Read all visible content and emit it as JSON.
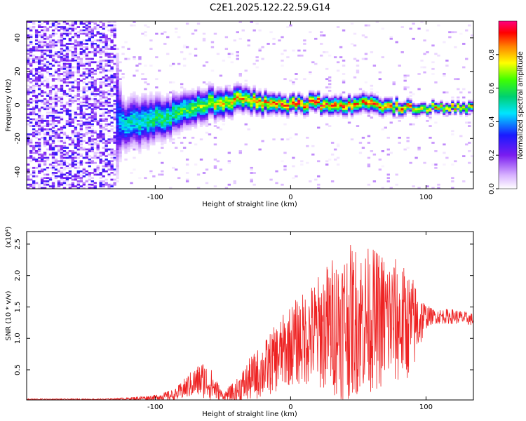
{
  "title": "C2E1.2025.122.22.59.G14",
  "colorbar": {
    "label": "Normalized spectral amplitude",
    "ticks": [
      "0.0",
      "0.2",
      "0.4",
      "0.6",
      "0.8"
    ],
    "tick_values": [
      0.0,
      0.2,
      0.4,
      0.6,
      0.8
    ],
    "range": [
      0,
      1
    ]
  },
  "chart_data": [
    {
      "type": "heatmap",
      "name": "spectrogram",
      "title": "C2E1.2025.122.22.59.G14",
      "xlabel": "Height of straight line (km)",
      "ylabel": "Frequency (Hz)",
      "xlim": [
        -195,
        135
      ],
      "ylim": [
        -50,
        50
      ],
      "x_ticks": [
        "-100",
        "0",
        "100"
      ],
      "x_tick_values": [
        -100,
        0,
        100
      ],
      "y_ticks": [
        "40",
        "20",
        "0",
        "-20",
        "-40"
      ],
      "y_tick_values": [
        40,
        20,
        0,
        -20,
        -40
      ],
      "description_points": {
        "x": [
          -195,
          -130,
          -125,
          -110,
          -95,
          -80,
          -65,
          -50,
          -35,
          -20,
          0,
          20,
          40,
          60,
          80,
          100,
          120,
          135
        ],
        "center_freq": [
          0,
          0,
          -12,
          -10,
          -8,
          -4,
          0,
          2,
          3,
          1,
          0,
          1,
          0,
          0,
          -1,
          -2,
          -2,
          -2
        ],
        "width": [
          50,
          50,
          14,
          14,
          12,
          10,
          9,
          8,
          7,
          6,
          5,
          5,
          5,
          5,
          4,
          3,
          3,
          3
        ],
        "peak_amplitude": [
          0.25,
          0.25,
          0.5,
          0.55,
          0.6,
          0.65,
          0.7,
          0.8,
          0.85,
          0.9,
          0.95,
          0.95,
          0.9,
          0.9,
          0.9,
          0.85,
          0.85,
          0.85
        ]
      }
    },
    {
      "type": "line",
      "name": "snr",
      "xlabel": "Height of straight line (km)",
      "ylabel": "SNR (10 * v/v)",
      "y_scale_label": "(x10⁴)",
      "color": "#ee2222",
      "xlim": [
        -195,
        135
      ],
      "ylim": [
        0.02,
        2.7
      ],
      "x_ticks": [
        "-100",
        "0",
        "100"
      ],
      "x_tick_values": [
        -100,
        0,
        100
      ],
      "y_ticks": [
        "0.5",
        "1.0",
        "1.5",
        "2.0",
        "2.5"
      ],
      "y_tick_values": [
        0.5,
        1.0,
        1.5,
        2.0,
        2.5
      ],
      "envelope": {
        "x": [
          -195,
          -140,
          -120,
          -100,
          -85,
          -75,
          -65,
          -58,
          -50,
          -40,
          -30,
          -20,
          -10,
          0,
          10,
          20,
          30,
          40,
          50,
          60,
          70,
          80,
          90,
          100,
          105,
          120,
          135
        ],
        "base": [
          0.03,
          0.03,
          0.04,
          0.06,
          0.1,
          0.25,
          0.35,
          0.25,
          0.08,
          0.15,
          0.35,
          0.5,
          0.7,
          0.9,
          1.0,
          1.1,
          1.2,
          1.25,
          1.3,
          1.3,
          1.3,
          1.25,
          1.2,
          1.35,
          1.35,
          1.35,
          1.3
        ],
        "amp": [
          0.01,
          0.01,
          0.02,
          0.04,
          0.1,
          0.2,
          0.3,
          0.25,
          0.05,
          0.2,
          0.35,
          0.45,
          0.55,
          0.65,
          0.75,
          0.9,
          1.1,
          1.25,
          1.2,
          1.15,
          1.1,
          1.0,
          0.8,
          0.2,
          0.12,
          0.12,
          0.1
        ]
      }
    }
  ]
}
